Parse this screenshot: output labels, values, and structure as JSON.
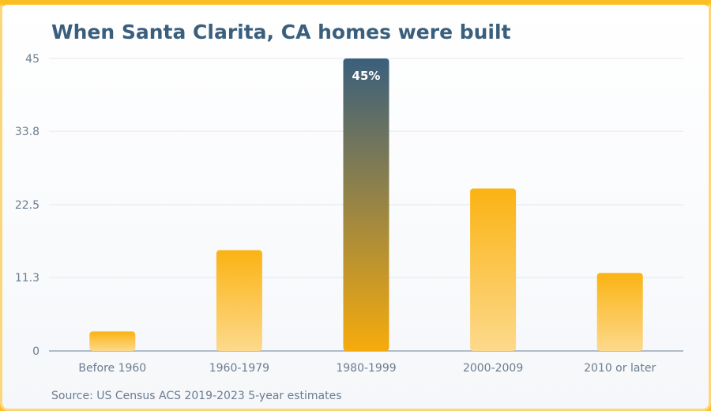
{
  "chart_data": {
    "type": "bar",
    "title": "When Santa Clarita, CA homes were built",
    "source": "Source: US Census ACS 2019-2023 5-year estimates",
    "categories": [
      "Before 1960",
      "1960-1979",
      "1980-1999",
      "2000-2009",
      "2010 or later"
    ],
    "values": [
      3,
      15.5,
      45,
      25,
      12
    ],
    "highlight_index": 2,
    "highlight_label": "45%",
    "y_ticks": [
      "0",
      "11.3",
      "22.5",
      "33.8",
      "45"
    ],
    "ylim": [
      0,
      45
    ],
    "grid": true,
    "colors": {
      "bar_top": "#fbb313",
      "bar_bottom": "#fcd98c",
      "highlight_top": "#3a5f7d",
      "highlight_bottom": "#f6ab0c",
      "grid": "#e3e7ec",
      "axis": "#9aa8b6"
    }
  }
}
